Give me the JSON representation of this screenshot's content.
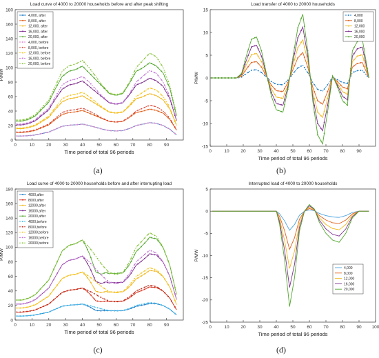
{
  "figure": {
    "captions": [
      "(a)",
      "(b)",
      "(c)",
      "(d)"
    ]
  },
  "palette": {
    "series5": [
      "#1E7EC8",
      "#E0621E",
      "#F2B71E",
      "#7E2F8E",
      "#52A62E"
    ],
    "before": [
      "#E38AC9",
      "#D94A3A",
      "#F4C520",
      "#C277D6",
      "#88C33A"
    ]
  },
  "chart_data": [
    {
      "type": "line",
      "title": "Load curve of 4000 to 20000 households before and after peak shifting",
      "xlabel": "Time period of total 96 periods",
      "ylabel": "P/MW",
      "xlim": [
        0,
        100
      ],
      "ylim": [
        0,
        180
      ],
      "xticks": [
        0,
        10,
        20,
        30,
        40,
        50,
        60,
        70,
        80,
        90
      ],
      "yticks": [
        0,
        20,
        40,
        60,
        80,
        100,
        120,
        140,
        160,
        180
      ],
      "legend_position": "top-left",
      "series": [
        {
          "name": "4,000, after",
          "base": "b4",
          "scale": 1,
          "offset": 0,
          "style": "after",
          "color": "#1E7EC8"
        },
        {
          "name": "8,000, after",
          "base": "a",
          "scale": 1.9,
          "offset": 0,
          "style": "after",
          "color": "#E0621E"
        },
        {
          "name": "12,000, after",
          "base": "a",
          "scale": 2.85,
          "offset": 0,
          "style": "after",
          "color": "#F2B71E"
        },
        {
          "name": "16,000, after",
          "base": "a",
          "scale": 3.8,
          "offset": 0,
          "style": "after",
          "color": "#7E2F8E"
        },
        {
          "name": "20,000, after",
          "base": "a",
          "scale": 4.75,
          "offset": 0,
          "style": "after",
          "color": "#52A62E"
        },
        {
          "name": "4,000, before",
          "base": "b4",
          "scale": 1,
          "offset": 0,
          "style": "before",
          "color": "#E38AC9"
        },
        {
          "name": "8,000, before",
          "base": "b4",
          "scale": 2,
          "offset": 0,
          "style": "before",
          "color": "#D94A3A"
        },
        {
          "name": "12,000, before",
          "base": "b4",
          "scale": 3,
          "offset": 0,
          "style": "before",
          "color": "#F4C520"
        },
        {
          "name": "16,000, before",
          "base": "b4",
          "scale": 4,
          "offset": 0,
          "style": "before",
          "color": "#C277D6"
        },
        {
          "name": "20,000, before",
          "base": "b4",
          "scale": 5,
          "offset": 0,
          "style": "before",
          "color": "#88C33A"
        }
      ]
    },
    {
      "type": "line",
      "title": "Load transfer of 4000 to 20000 households",
      "xlabel": "Time period of total 96 periods",
      "ylabel": "P/MW",
      "xlim": [
        0,
        100
      ],
      "ylim": [
        -15,
        15
      ],
      "xticks": [
        0,
        10,
        20,
        30,
        40,
        50,
        60,
        70,
        80,
        90
      ],
      "yticks": [
        -15,
        -10,
        -5,
        0,
        5,
        10,
        15
      ],
      "legend_position": "top-right",
      "series": [
        {
          "name": "4,000",
          "base": "tr",
          "scale": 1,
          "color": "#1E7EC8",
          "style": "dash"
        },
        {
          "name": "8,000",
          "base": "tr",
          "scale": 2,
          "color": "#E0621E",
          "style": "solid"
        },
        {
          "name": "12,000",
          "base": "tr",
          "scale": 3,
          "color": "#F2B71E",
          "style": "solid"
        },
        {
          "name": "16,000",
          "base": "tr",
          "scale": 4,
          "color": "#7E2F8E",
          "style": "solid"
        },
        {
          "name": "20,000",
          "base": "tr",
          "scale": 5,
          "color": "#52A62E",
          "style": "solid"
        }
      ]
    },
    {
      "type": "line",
      "title": "Load curve of 4000 to 20000 households before and after interrupting load",
      "xlabel": "Time period of total 96 periods",
      "ylabel": "P/MW",
      "xlim": [
        0,
        100
      ],
      "ylim": [
        0,
        180
      ],
      "xticks": [
        0,
        10,
        20,
        30,
        40,
        50,
        60,
        70,
        80,
        90
      ],
      "yticks": [
        0,
        20,
        40,
        60,
        80,
        100,
        120,
        140,
        160,
        180
      ],
      "legend_position": "top-left",
      "series": [
        {
          "name": "4000,after",
          "base": "b4",
          "scale": 1,
          "cut": 1,
          "style": "after",
          "color": "#1E7EC8"
        },
        {
          "name": "8000,after",
          "base": "b4",
          "scale": 2,
          "cut": 2,
          "style": "after",
          "color": "#D7331E"
        },
        {
          "name": "12000,after",
          "base": "b4",
          "scale": 3,
          "cut": 3,
          "style": "after",
          "color": "#F2B71E"
        },
        {
          "name": "16000,after",
          "base": "b4",
          "scale": 4,
          "cut": 4,
          "style": "after",
          "color": "#7E2F8E"
        },
        {
          "name": "20000,after",
          "base": "b4",
          "scale": 5,
          "cut": 5,
          "style": "after",
          "color": "#52A62E"
        },
        {
          "name": "4000,before",
          "base": "b4",
          "scale": 1,
          "cut": 0,
          "style": "before",
          "color": "#46B8E8"
        },
        {
          "name": "8000,before",
          "base": "b4",
          "scale": 2,
          "cut": 0,
          "style": "before",
          "color": "#C0301E"
        },
        {
          "name": "12000,before",
          "base": "b4",
          "scale": 3,
          "cut": 0,
          "style": "before",
          "color": "#F4C520"
        },
        {
          "name": "16000,before",
          "base": "b4",
          "scale": 4,
          "cut": 0,
          "style": "before",
          "color": "#C277D6"
        },
        {
          "name": "20000,before",
          "base": "b4",
          "scale": 5,
          "cut": 0,
          "style": "before",
          "color": "#88C33A"
        }
      ]
    },
    {
      "type": "line",
      "title": "Interrupted load of 4000 to 20000 households",
      "xlabel": "Time period of total 96 periods",
      "ylabel": "P/MW",
      "xlim": [
        0,
        100
      ],
      "ylim": [
        -25,
        5
      ],
      "xticks": [
        0,
        10,
        20,
        30,
        40,
        50,
        60,
        70,
        80,
        90,
        100
      ],
      "yticks": [
        -25,
        -20,
        -15,
        -10,
        -5,
        0,
        5
      ],
      "legend_position": "lower-right",
      "series": [
        {
          "name": "4,000",
          "base": "ir",
          "scale": 1,
          "color": "#4AA3DF"
        },
        {
          "name": "8,000",
          "base": "ir",
          "scale": 2,
          "color": "#E0621E"
        },
        {
          "name": "12,000",
          "base": "ir",
          "scale": 3,
          "color": "#F2B71E"
        },
        {
          "name": "16,000",
          "base": "ir",
          "scale": 4,
          "color": "#7E2F8E"
        },
        {
          "name": "20,000",
          "base": "ir",
          "scale": 5,
          "color": "#52A62E"
        }
      ]
    }
  ],
  "base_profiles": {
    "b4_x": [
      1,
      4,
      8,
      12,
      16,
      20,
      24,
      28,
      32,
      36,
      40,
      44,
      48,
      52,
      56,
      60,
      64,
      68,
      72,
      76,
      80,
      84,
      88,
      92,
      96
    ],
    "b4_y": [
      5.5,
      5.5,
      6,
      7,
      9,
      11,
      15,
      19,
      20.5,
      21,
      22,
      20,
      17.5,
      15,
      13,
      12.5,
      13,
      16,
      20,
      22,
      24,
      23,
      20,
      15,
      7
    ],
    "a_y": [
      5.5,
      5.5,
      6,
      7,
      9,
      11,
      15,
      18.5,
      20,
      20.5,
      21.5,
      19.5,
      17.5,
      15.5,
      13.5,
      13,
      13.5,
      16.5,
      20,
      21,
      22.5,
      21.5,
      19.5,
      15,
      7
    ],
    "tr_x": [
      1,
      16,
      19,
      22,
      25,
      28,
      31,
      34,
      37,
      40,
      44,
      47,
      50,
      53,
      56,
      59,
      62,
      65,
      68,
      71,
      74,
      77,
      80,
      83,
      86,
      89,
      92,
      96
    ],
    "tr_y": [
      0,
      0,
      0.2,
      1.0,
      1.7,
      1.8,
      1.2,
      0.2,
      -0.8,
      -1.4,
      -1.5,
      -0.5,
      0.9,
      2.2,
      2.8,
      1.2,
      -1.0,
      -2.5,
      -2.9,
      -1.5,
      0.1,
      -0.4,
      -1.0,
      -1.2,
      1.2,
      1.6,
      1.7,
      0
    ],
    "ir_x": [
      1,
      40,
      42,
      45,
      48,
      51,
      54,
      57,
      60,
      63,
      66,
      70,
      74,
      78,
      82,
      86,
      90,
      96
    ],
    "ir_y": [
      0,
      0,
      -0.6,
      -2.2,
      -4.3,
      -3.0,
      -0.9,
      0,
      0.3,
      0.1,
      -0.5,
      -1.0,
      -1.3,
      -1.4,
      -1.0,
      -0.3,
      0,
      0
    ]
  }
}
